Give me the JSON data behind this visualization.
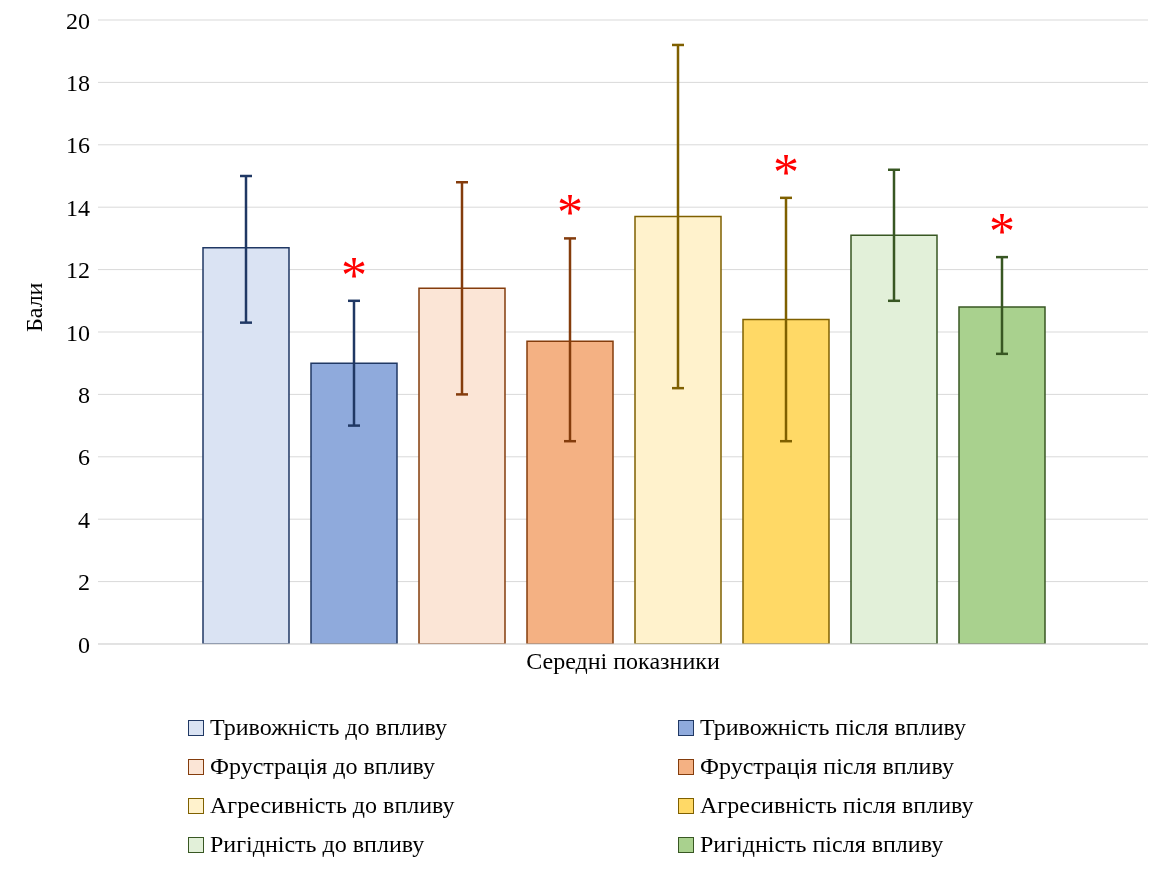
{
  "chart_data": {
    "type": "bar",
    "categories": [
      "Середні показники"
    ],
    "ylabel": "Бали",
    "ylim": [
      0,
      20
    ],
    "yticks": [
      0,
      2,
      4,
      6,
      8,
      10,
      12,
      14,
      16,
      18,
      20
    ],
    "grid": "y",
    "legend": "bottom",
    "annotations": [
      "*",
      "*",
      "*",
      "*"
    ],
    "series": [
      {
        "name": "Тривожність до впливу",
        "color": "#dae3f3",
        "values": [
          12.7
        ],
        "errors": [
          [
            10.3,
            15.0
          ]
        ]
      },
      {
        "name": "Тривожність після впливу",
        "color": "#8faadc",
        "values": [
          9.0
        ],
        "errors": [
          [
            7.0,
            11.0
          ]
        ]
      },
      {
        "name": "Фрустрація до впливу",
        "color": "#fbe5d6",
        "values": [
          11.4
        ],
        "errors": [
          [
            8.0,
            14.8
          ]
        ]
      },
      {
        "name": "Фрустрація після впливу",
        "color": "#f4b183",
        "values": [
          9.7
        ],
        "errors": [
          [
            6.5,
            13.0
          ]
        ]
      },
      {
        "name": "Агресивність до впливу",
        "color": "#fff2cc",
        "values": [
          13.7
        ],
        "errors": [
          [
            8.2,
            19.2
          ]
        ]
      },
      {
        "name": "Агресивність після впливу",
        "color": "#ffd966",
        "values": [
          10.4
        ],
        "errors": [
          [
            6.5,
            14.3
          ]
        ]
      },
      {
        "name": "Ригідність до впливу",
        "color": "#e2f0d9",
        "values": [
          13.1
        ],
        "errors": [
          [
            11.0,
            15.2
          ]
        ]
      },
      {
        "name": "Ригідність після впливу",
        "color": "#a9d18e",
        "values": [
          10.8
        ],
        "errors": [
          [
            9.3,
            12.4
          ]
        ]
      }
    ]
  }
}
